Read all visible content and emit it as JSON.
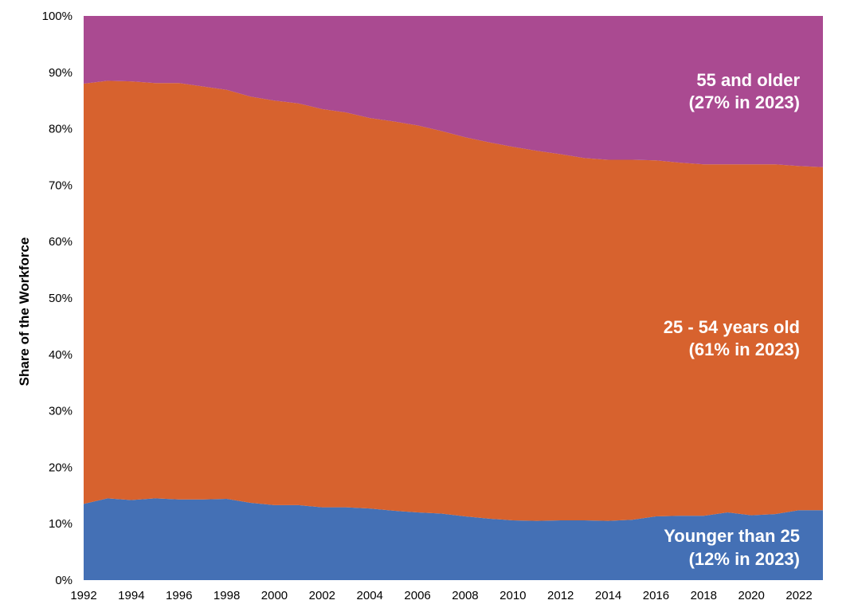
{
  "chart_data": {
    "type": "area",
    "stacked": true,
    "ylabel": "Share of the Workforce",
    "xlabel": "",
    "xlim": [
      1992,
      2023
    ],
    "ylim": [
      0,
      100
    ],
    "x_ticks": [
      1992,
      1994,
      1996,
      1998,
      2000,
      2002,
      2004,
      2006,
      2008,
      2010,
      2012,
      2014,
      2016,
      2018,
      2020,
      2022
    ],
    "y_ticks": [
      0,
      10,
      20,
      30,
      40,
      50,
      60,
      70,
      80,
      90,
      100
    ],
    "y_tick_suffix": "%",
    "x": [
      1992,
      1993,
      1994,
      1995,
      1996,
      1997,
      1998,
      1999,
      2000,
      2001,
      2002,
      2003,
      2004,
      2005,
      2006,
      2007,
      2008,
      2009,
      2010,
      2011,
      2012,
      2013,
      2014,
      2015,
      2016,
      2017,
      2018,
      2019,
      2020,
      2021,
      2022,
      2023
    ],
    "series": [
      {
        "name": "Younger than 25",
        "label_lines": [
          "Younger than 25",
          "(12% in 2023)"
        ],
        "color": "#4470B5",
        "values": [
          13.5,
          14.5,
          14.2,
          14.5,
          14.3,
          14.3,
          14.4,
          13.7,
          13.3,
          13.3,
          12.9,
          12.9,
          12.7,
          12.3,
          12.0,
          11.8,
          11.3,
          10.9,
          10.6,
          10.5,
          10.6,
          10.6,
          10.5,
          10.7,
          11.3,
          11.4,
          11.4,
          12.0,
          11.5,
          11.7,
          12.4,
          12.4
        ]
      },
      {
        "name": "25 - 54 years old",
        "label_lines": [
          "25 - 54 years old",
          "(61% in 2023)"
        ],
        "color": "#D7622E",
        "values": [
          74.5,
          74.0,
          74.2,
          73.6,
          73.8,
          73.2,
          72.5,
          72.0,
          71.7,
          71.2,
          70.6,
          70.0,
          69.2,
          69.0,
          68.6,
          67.8,
          67.2,
          66.7,
          66.2,
          65.6,
          64.9,
          64.2,
          64.0,
          63.8,
          63.1,
          62.6,
          62.3,
          61.7,
          62.2,
          62.0,
          61.0,
          60.8
        ]
      },
      {
        "name": "55 and older",
        "label_lines": [
          "55 and older",
          "(27% in 2023)"
        ],
        "color": "#AA4A91",
        "values": [
          12.0,
          11.5,
          11.6,
          11.9,
          11.9,
          12.5,
          13.1,
          14.3,
          15.0,
          15.5,
          16.5,
          17.1,
          18.1,
          18.7,
          19.4,
          20.4,
          21.5,
          22.4,
          23.2,
          23.9,
          24.5,
          25.2,
          25.5,
          25.5,
          25.6,
          26.0,
          26.3,
          26.3,
          26.3,
          26.3,
          26.6,
          26.8
        ]
      }
    ]
  }
}
